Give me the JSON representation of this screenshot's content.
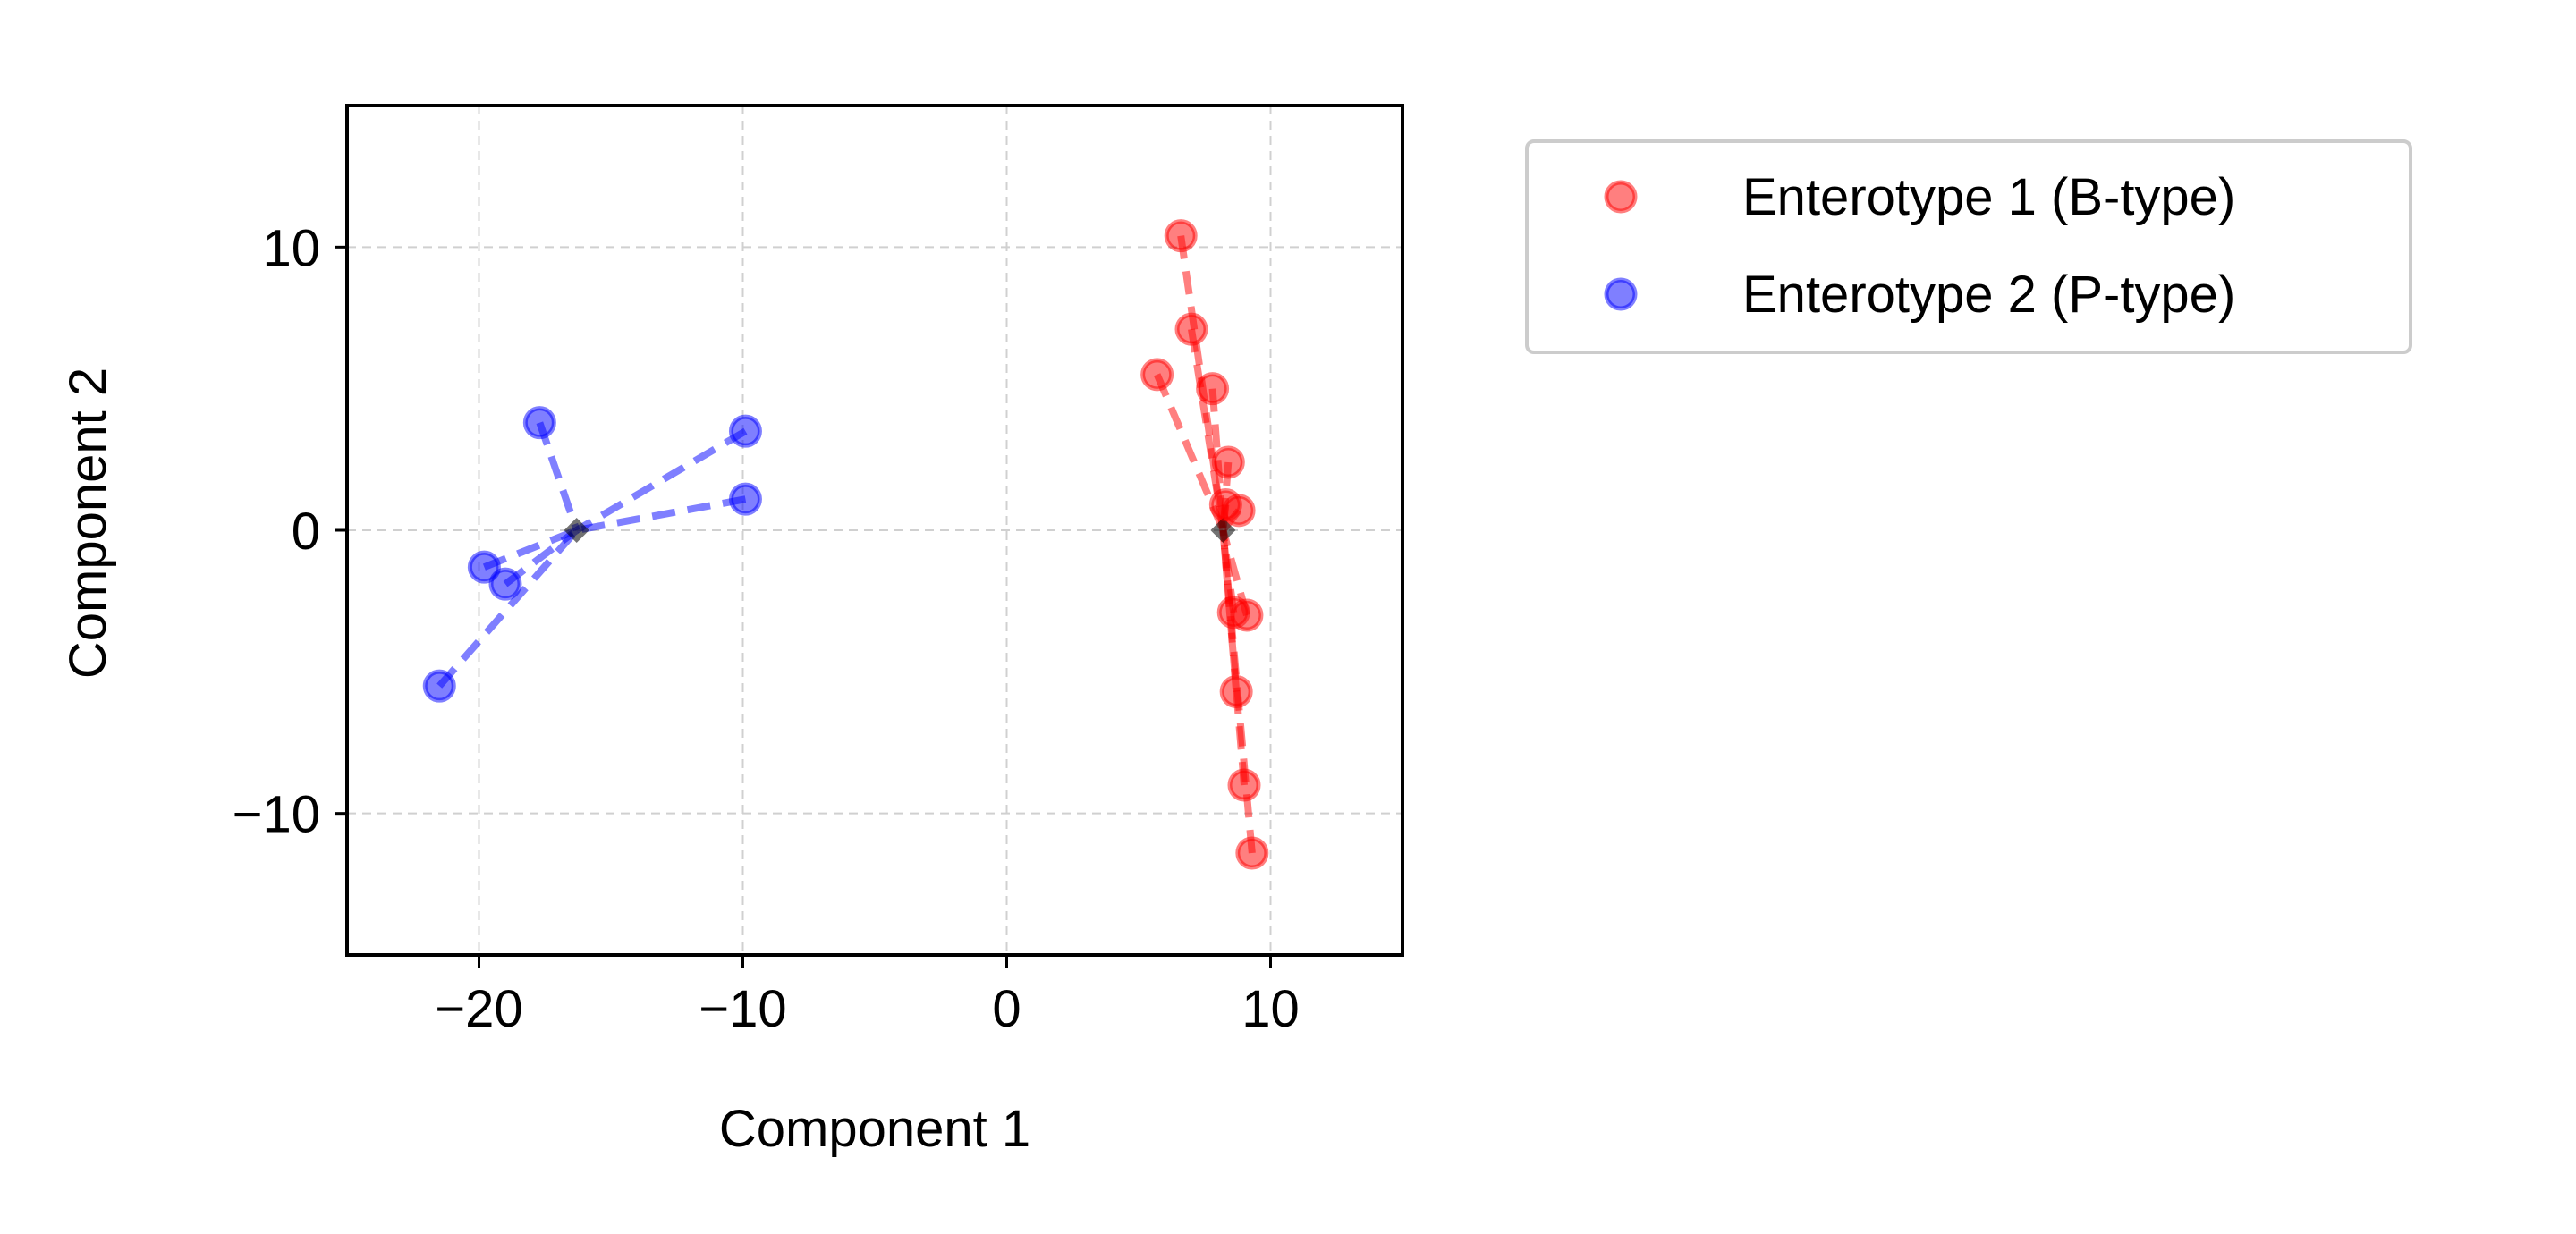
{
  "chart_data": {
    "type": "scatter",
    "xlabel": "Component 1",
    "ylabel": "Component 2",
    "xlim": [
      -25,
      15
    ],
    "ylim": [
      -15,
      15
    ],
    "xticks": [
      -20,
      -10,
      0,
      10
    ],
    "yticks": [
      -10,
      0,
      10
    ],
    "xtick_labels": [
      "−20",
      "−10",
      "0",
      "10"
    ],
    "ytick_labels": [
      "−10",
      "0",
      "10"
    ],
    "grid": true,
    "legend_position": "outside upper right",
    "series": [
      {
        "name": "Enterotype 1 (B-type)",
        "color": "#ff0000",
        "centroid": [
          8.2,
          0.0
        ],
        "points": [
          [
            6.6,
            10.4
          ],
          [
            7.0,
            7.1
          ],
          [
            5.7,
            5.5
          ],
          [
            7.8,
            5.0
          ],
          [
            8.4,
            2.4
          ],
          [
            8.3,
            0.9
          ],
          [
            8.8,
            0.7
          ],
          [
            8.6,
            -2.9
          ],
          [
            9.1,
            -3.0
          ],
          [
            8.7,
            -5.7
          ],
          [
            9.0,
            -9.0
          ],
          [
            9.3,
            -11.4
          ]
        ]
      },
      {
        "name": "Enterotype 2 (P-type)",
        "color": "#0000ff",
        "centroid": [
          -16.3,
          0.0
        ],
        "points": [
          [
            -17.7,
            3.8
          ],
          [
            -9.9,
            3.5
          ],
          [
            -9.9,
            1.1
          ],
          [
            -19.8,
            -1.3
          ],
          [
            -19.0,
            -1.9
          ],
          [
            -21.5,
            -5.5
          ]
        ]
      }
    ]
  }
}
